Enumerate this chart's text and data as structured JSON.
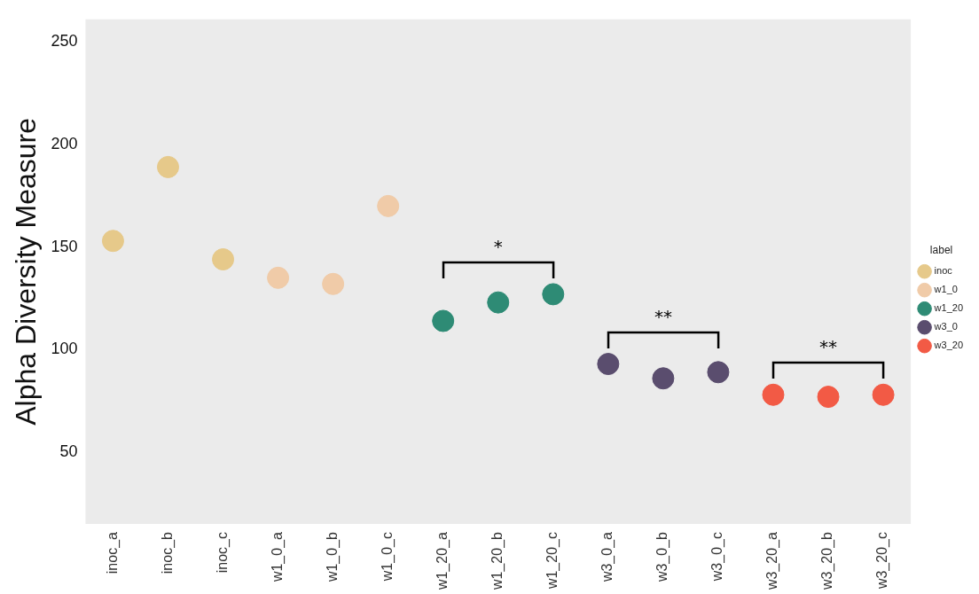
{
  "chart_data": {
    "type": "scatter",
    "ylabel": "Alpha Diversity Measure",
    "legend_title": "label",
    "legend": "right",
    "marker": "circle",
    "categories": [
      "inoc_a",
      "inoc_b",
      "inoc_c",
      "w1_0_a",
      "w1_0_b",
      "w1_0_c",
      "w1_20_a",
      "w1_20_b",
      "w1_20_c",
      "w3_0_a",
      "w3_0_b",
      "w3_0_c",
      "w3_20_a",
      "w3_20_b",
      "w3_20_c"
    ],
    "ylim": [
      15,
      261
    ],
    "yticks": [
      50,
      100,
      150,
      200,
      250
    ],
    "series": [
      {
        "name": "inoc",
        "color": "#e6c98a",
        "x": [
          "inoc_a",
          "inoc_b",
          "inoc_c"
        ],
        "values": [
          153,
          189,
          144
        ]
      },
      {
        "name": "w1_0",
        "color": "#f0cba8",
        "x": [
          "w1_0_a",
          "w1_0_b",
          "w1_0_c"
        ],
        "values": [
          135,
          132,
          170
        ]
      },
      {
        "name": "w1_20",
        "color": "#2e8b75",
        "x": [
          "w1_20_a",
          "w1_20_b",
          "w1_20_c"
        ],
        "values": [
          114,
          123,
          127
        ]
      },
      {
        "name": "w3_0",
        "color": "#5a4d6e",
        "x": [
          "w3_0_a",
          "w3_0_b",
          "w3_0_c"
        ],
        "values": [
          93,
          86,
          89
        ]
      },
      {
        "name": "w3_20",
        "color": "#f25a45",
        "x": [
          "w3_20_a",
          "w3_20_b",
          "w3_20_c"
        ],
        "values": [
          78,
          77,
          78
        ]
      }
    ],
    "annotations": [
      "*",
      "**",
      "**"
    ]
  }
}
